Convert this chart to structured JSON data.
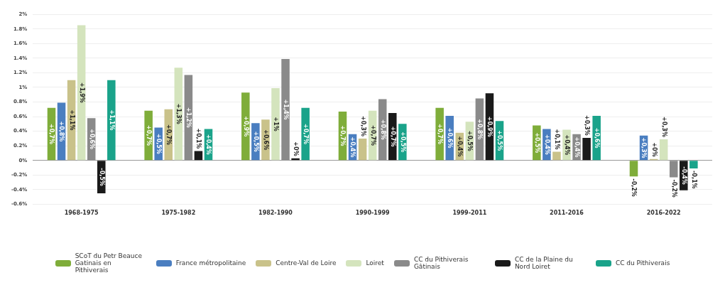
{
  "chart_data": {
    "type": "bar",
    "categories": [
      "1968-1975",
      "1975-1982",
      "1982-1990",
      "1990-1999",
      "1999-2011",
      "2011-2016",
      "2016-2022"
    ],
    "series": [
      {
        "name": "SCoT du Petr Beauce Gatinais en Pithiverais",
        "color": "#7fad3a",
        "values": [
          0.72,
          0.68,
          0.93,
          0.67,
          0.72,
          0.48,
          -0.22
        ],
        "value_labels": [
          "+0,7%",
          "+0,7%",
          "+0,9%",
          "+0,7%",
          "+0,7%",
          "+0,5%",
          "-0,2%"
        ]
      },
      {
        "name": "France métropolitaine",
        "color": "#4a7ec0",
        "values": [
          0.79,
          0.45,
          0.51,
          0.36,
          0.61,
          0.43,
          0.34
        ],
        "value_labels": [
          "+0,8%",
          "+0,5%",
          "+0,5%",
          "+0,4%",
          "+0,6%",
          "+0,4%",
          "+0,3%"
        ]
      },
      {
        "name": "Centre-Val de Loire",
        "color": "#c9c28a",
        "values": [
          1.1,
          0.7,
          0.56,
          0.3,
          0.38,
          0.12,
          0.02
        ],
        "value_labels": [
          "+1,1%",
          "+0,7%",
          "+0,6%",
          "+0,3%",
          "+0,4%",
          "+0,1%",
          "+0%"
        ]
      },
      {
        "name": "Loiret",
        "color": "#d4e4bd",
        "values": [
          1.85,
          1.27,
          0.99,
          0.68,
          0.53,
          0.42,
          0.29
        ],
        "value_labels": [
          "+1,9%",
          "+1,3%",
          "+1%",
          "+0,7%",
          "+0,5%",
          "+0,4%",
          "+0,3%"
        ]
      },
      {
        "name": "CC du Pithiverais Gâtinais",
        "color": "#8a8a8a",
        "values": [
          0.58,
          1.17,
          1.39,
          0.84,
          0.85,
          0.36,
          -0.23
        ],
        "value_labels": [
          "+0,6%",
          "+1,2%",
          "+1,4%",
          "+0,8%",
          "+0,8%",
          "+0,4%",
          "-0,2%"
        ]
      },
      {
        "name": "CC de la Plaine du Nord Loiret",
        "color": "#1a1a1a",
        "values": [
          -0.45,
          0.13,
          0.03,
          0.65,
          0.92,
          0.31,
          -0.41
        ],
        "value_labels": [
          "-0,5%",
          "+0,1%",
          "+0%",
          "+0,7%",
          "+0,9%",
          "+0,3%",
          "-0,4%"
        ]
      },
      {
        "name": "CC du Pithiverais",
        "color": "#1aa38a",
        "values": [
          1.1,
          0.43,
          0.72,
          0.5,
          0.54,
          0.61,
          -0.11
        ],
        "value_labels": [
          "+1,1%",
          "+0,4%",
          "+0,7%",
          "+0,5%",
          "+0,5%",
          "+0,6%",
          "-0,1%"
        ]
      }
    ],
    "ylim": [
      -0.6,
      2
    ],
    "yticks": [
      {
        "value": -0.6,
        "label": "-0.6%"
      },
      {
        "value": -0.4,
        "label": "-0.4%"
      },
      {
        "value": -0.2,
        "label": "-0.2%"
      },
      {
        "value": 0,
        "label": "0%"
      },
      {
        "value": 0.2,
        "label": "0.2%"
      },
      {
        "value": 0.4,
        "label": "0.4%"
      },
      {
        "value": 0.6,
        "label": "0.6%"
      },
      {
        "value": 0.8,
        "label": "0.8%"
      },
      {
        "value": 1,
        "label": "1%"
      },
      {
        "value": 1.2,
        "label": "1.2%"
      },
      {
        "value": 1.4,
        "label": "1.4%"
      },
      {
        "value": 1.6,
        "label": "1.6%"
      },
      {
        "value": 1.8,
        "label": "1.8%"
      },
      {
        "value": 2,
        "label": "2%"
      }
    ],
    "grid": "y",
    "legend": "bottom"
  }
}
